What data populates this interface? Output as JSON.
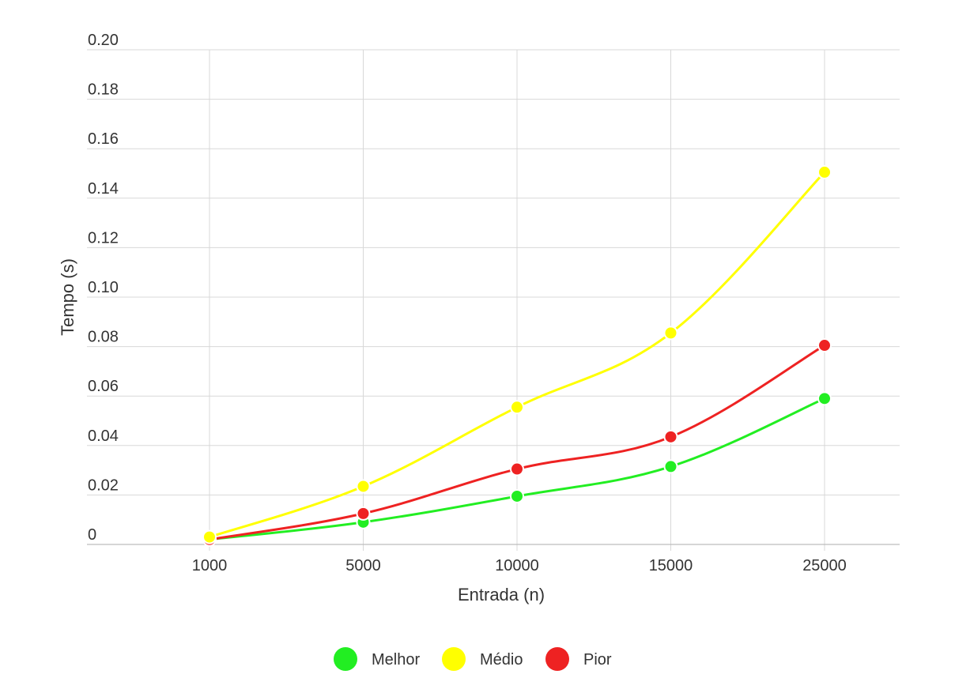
{
  "chart_data": {
    "type": "line",
    "title": "",
    "xlabel": "Entrada (n)",
    "ylabel": "Tempo (s)",
    "categories": [
      "1000",
      "5000",
      "10000",
      "15000",
      "25000"
    ],
    "ylim": [
      0,
      0.2
    ],
    "yticks": [
      "0",
      "0.02",
      "0.04",
      "0.06",
      "0.08",
      "0.10",
      "0.12",
      "0.14",
      "0.16",
      "0.18",
      "0.20"
    ],
    "grid": true,
    "legend_position": "bottom",
    "series": [
      {
        "name": "Melhor",
        "color": "#22ee22",
        "values": [
          0.002,
          0.009,
          0.0195,
          0.0315,
          0.059
        ]
      },
      {
        "name": "Médio",
        "color": "#ffff00",
        "values": [
          0.003,
          0.0235,
          0.0555,
          0.0855,
          0.1505
        ]
      },
      {
        "name": "Pior",
        "color": "#ee2222",
        "values": [
          0.002,
          0.0125,
          0.0305,
          0.0435,
          0.0805
        ]
      }
    ]
  }
}
